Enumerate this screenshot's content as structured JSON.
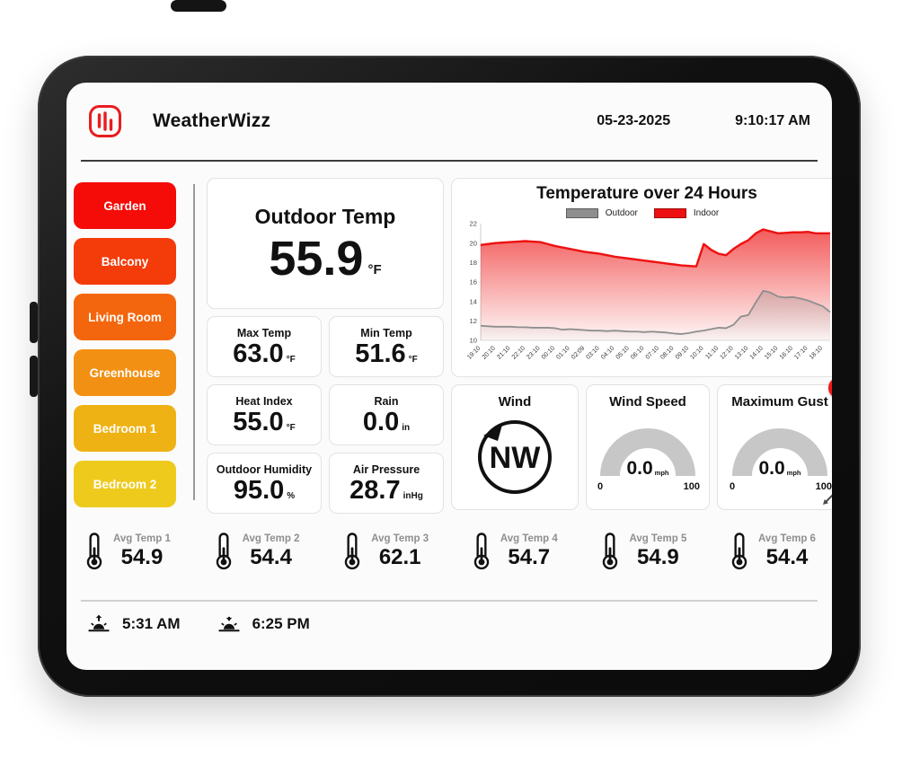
{
  "header": {
    "app_name": "WeatherWizz",
    "date": "05-23-2025",
    "time": "9:10:17 AM"
  },
  "accents": {
    "logo_red": "#e81c1f",
    "close_badge_red": "#f21717"
  },
  "sidebar": {
    "rooms": [
      {
        "label": "Garden",
        "color": "#f50b07"
      },
      {
        "label": "Balcony",
        "color": "#f43b0a"
      },
      {
        "label": "Living Room",
        "color": "#f4660e"
      },
      {
        "label": "Greenhouse",
        "color": "#f29013"
      },
      {
        "label": "Bedroom 1",
        "color": "#efb214"
      },
      {
        "label": "Bedroom 2",
        "color": "#eeca1d"
      }
    ]
  },
  "outdoor_temp": {
    "title": "Outdoor Temp",
    "value": "55.9",
    "unit": "°F"
  },
  "stats": [
    {
      "label": "Max Temp",
      "value": "63.0",
      "unit": "°F"
    },
    {
      "label": "Min Temp",
      "value": "51.6",
      "unit": "°F"
    },
    {
      "label": "Heat Index",
      "value": "55.0",
      "unit": "°F"
    },
    {
      "label": "Rain",
      "value": "0.0",
      "unit": "in"
    },
    {
      "label": "Outdoor Humidity",
      "value": "95.0",
      "unit": "%"
    },
    {
      "label": "Air Pressure",
      "value": "28.7",
      "unit": "inHg"
    }
  ],
  "chart_data": {
    "type": "area",
    "title": "Temperature over 24 Hours",
    "legend_position": "top",
    "grid": false,
    "ylim": [
      10,
      22
    ],
    "yticks": [
      10,
      12,
      14,
      16,
      18,
      20,
      22
    ],
    "x_labels": [
      "19:10",
      "20:10",
      "21:10",
      "22:10",
      "23:10",
      "00:10",
      "01:10",
      "02:09",
      "03:10",
      "04:10",
      "05:10",
      "06:10",
      "07:10",
      "08:10",
      "09:10",
      "10:10",
      "11:10",
      "12:10",
      "13:10",
      "14:10",
      "15:10",
      "16:10",
      "17:10",
      "18:10"
    ],
    "series": [
      {
        "name": "Outdoor",
        "color": "#8e8e8e",
        "values": [
          11.5,
          11.45,
          11.4,
          11.4,
          11.4,
          11.35,
          11.35,
          11.3,
          11.3,
          11.3,
          11.25,
          11.1,
          11.15,
          11.1,
          11.05,
          11.0,
          11.0,
          10.95,
          11.0,
          10.95,
          10.9,
          10.9,
          10.85,
          10.9,
          10.85,
          10.8,
          10.7,
          10.65,
          10.75,
          10.9,
          11.0,
          11.15,
          11.3,
          11.25,
          11.6,
          12.45,
          12.6,
          13.9,
          15.1,
          14.9,
          14.5,
          14.4,
          14.45,
          14.3,
          14.1,
          13.8,
          13.5,
          12.9
        ]
      },
      {
        "name": "Indoor",
        "color": "#ee1111",
        "values": [
          19.8,
          19.9,
          20.0,
          20.05,
          20.1,
          20.15,
          20.2,
          20.15,
          20.1,
          19.9,
          19.7,
          19.55,
          19.4,
          19.25,
          19.1,
          19.0,
          18.9,
          18.75,
          18.6,
          18.5,
          18.4,
          18.3,
          18.2,
          18.1,
          18.0,
          17.9,
          17.8,
          17.7,
          17.65,
          17.6,
          19.9,
          19.3,
          18.9,
          18.75,
          19.4,
          19.9,
          20.3,
          21.0,
          21.4,
          21.2,
          21.0,
          21.05,
          21.1,
          21.1,
          21.15,
          21.0,
          21.0,
          21.0
        ]
      }
    ]
  },
  "wind": {
    "title": "Wind",
    "direction": "NW"
  },
  "gauges": [
    {
      "title": "Wind Speed",
      "value": "0.0",
      "unit": "mph",
      "min": "0",
      "max": "100"
    },
    {
      "title": "Maximum Gust",
      "value": "0.0",
      "unit": "mph",
      "min": "0",
      "max": "100"
    }
  ],
  "avg_temps": [
    {
      "label": "Avg Temp 1",
      "value": "54.9"
    },
    {
      "label": "Avg Temp 2",
      "value": "54.4"
    },
    {
      "label": "Avg Temp 3",
      "value": "62.1"
    },
    {
      "label": "Avg Temp 4",
      "value": "54.7"
    },
    {
      "label": "Avg Temp 5",
      "value": "54.9"
    },
    {
      "label": "Avg Temp 6",
      "value": "54.4"
    }
  ],
  "sun": {
    "sunrise": "5:31 AM",
    "sunset": "6:25 PM"
  }
}
